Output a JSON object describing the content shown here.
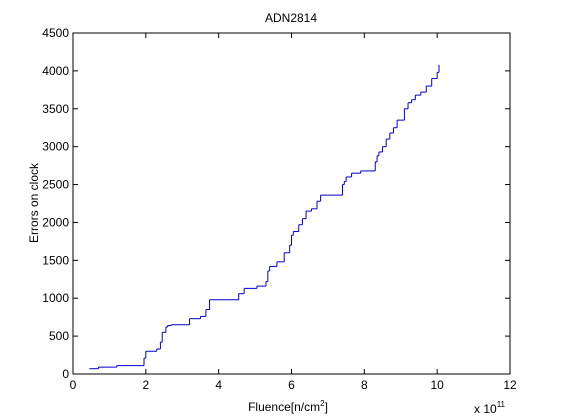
{
  "chart_data": {
    "type": "line",
    "title": "ADN2814",
    "xlabel": "Fluence[n/cm",
    "xlabel_sup": "2",
    "xlabel_close": "]",
    "ylabel": "Errors on clock",
    "x_multiplier": {
      "base": "x 10",
      "exp": "11"
    },
    "xlim": [
      0,
      12
    ],
    "ylim": [
      0,
      4500
    ],
    "xticks": [
      0,
      2,
      4,
      6,
      8,
      10,
      12
    ],
    "yticks": [
      0,
      500,
      1000,
      1500,
      2000,
      2500,
      3000,
      3500,
      4000,
      4500
    ],
    "grid": false,
    "line_color": "#0000cc",
    "series": [
      {
        "step": "post",
        "x": [
          0.45,
          0.7,
          1.2,
          1.95,
          2.0,
          2.3,
          2.4,
          2.45,
          2.55,
          2.6,
          2.7,
          3.2,
          3.5,
          3.65,
          3.75,
          4.55,
          4.7,
          5.05,
          5.3,
          5.35,
          5.4,
          5.6,
          5.8,
          5.95,
          6.0,
          6.05,
          6.2,
          6.3,
          6.4,
          6.55,
          6.7,
          6.8,
          7.4,
          7.45,
          7.5,
          7.65,
          7.9,
          8.3,
          8.35,
          8.4,
          8.5,
          8.6,
          8.7,
          8.8,
          8.9,
          9.1,
          9.2,
          9.3,
          9.4,
          9.55,
          9.7,
          9.85,
          10.0,
          10.05
        ],
        "values": [
          70,
          90,
          110,
          210,
          300,
          330,
          420,
          550,
          620,
          640,
          650,
          730,
          760,
          850,
          980,
          1060,
          1130,
          1160,
          1220,
          1360,
          1420,
          1480,
          1600,
          1700,
          1830,
          1880,
          1970,
          2050,
          2150,
          2180,
          2280,
          2360,
          2500,
          2540,
          2600,
          2650,
          2680,
          2800,
          2880,
          2930,
          3000,
          3100,
          3180,
          3250,
          3350,
          3500,
          3580,
          3620,
          3680,
          3720,
          3800,
          3900,
          3980,
          4080
        ]
      }
    ]
  }
}
